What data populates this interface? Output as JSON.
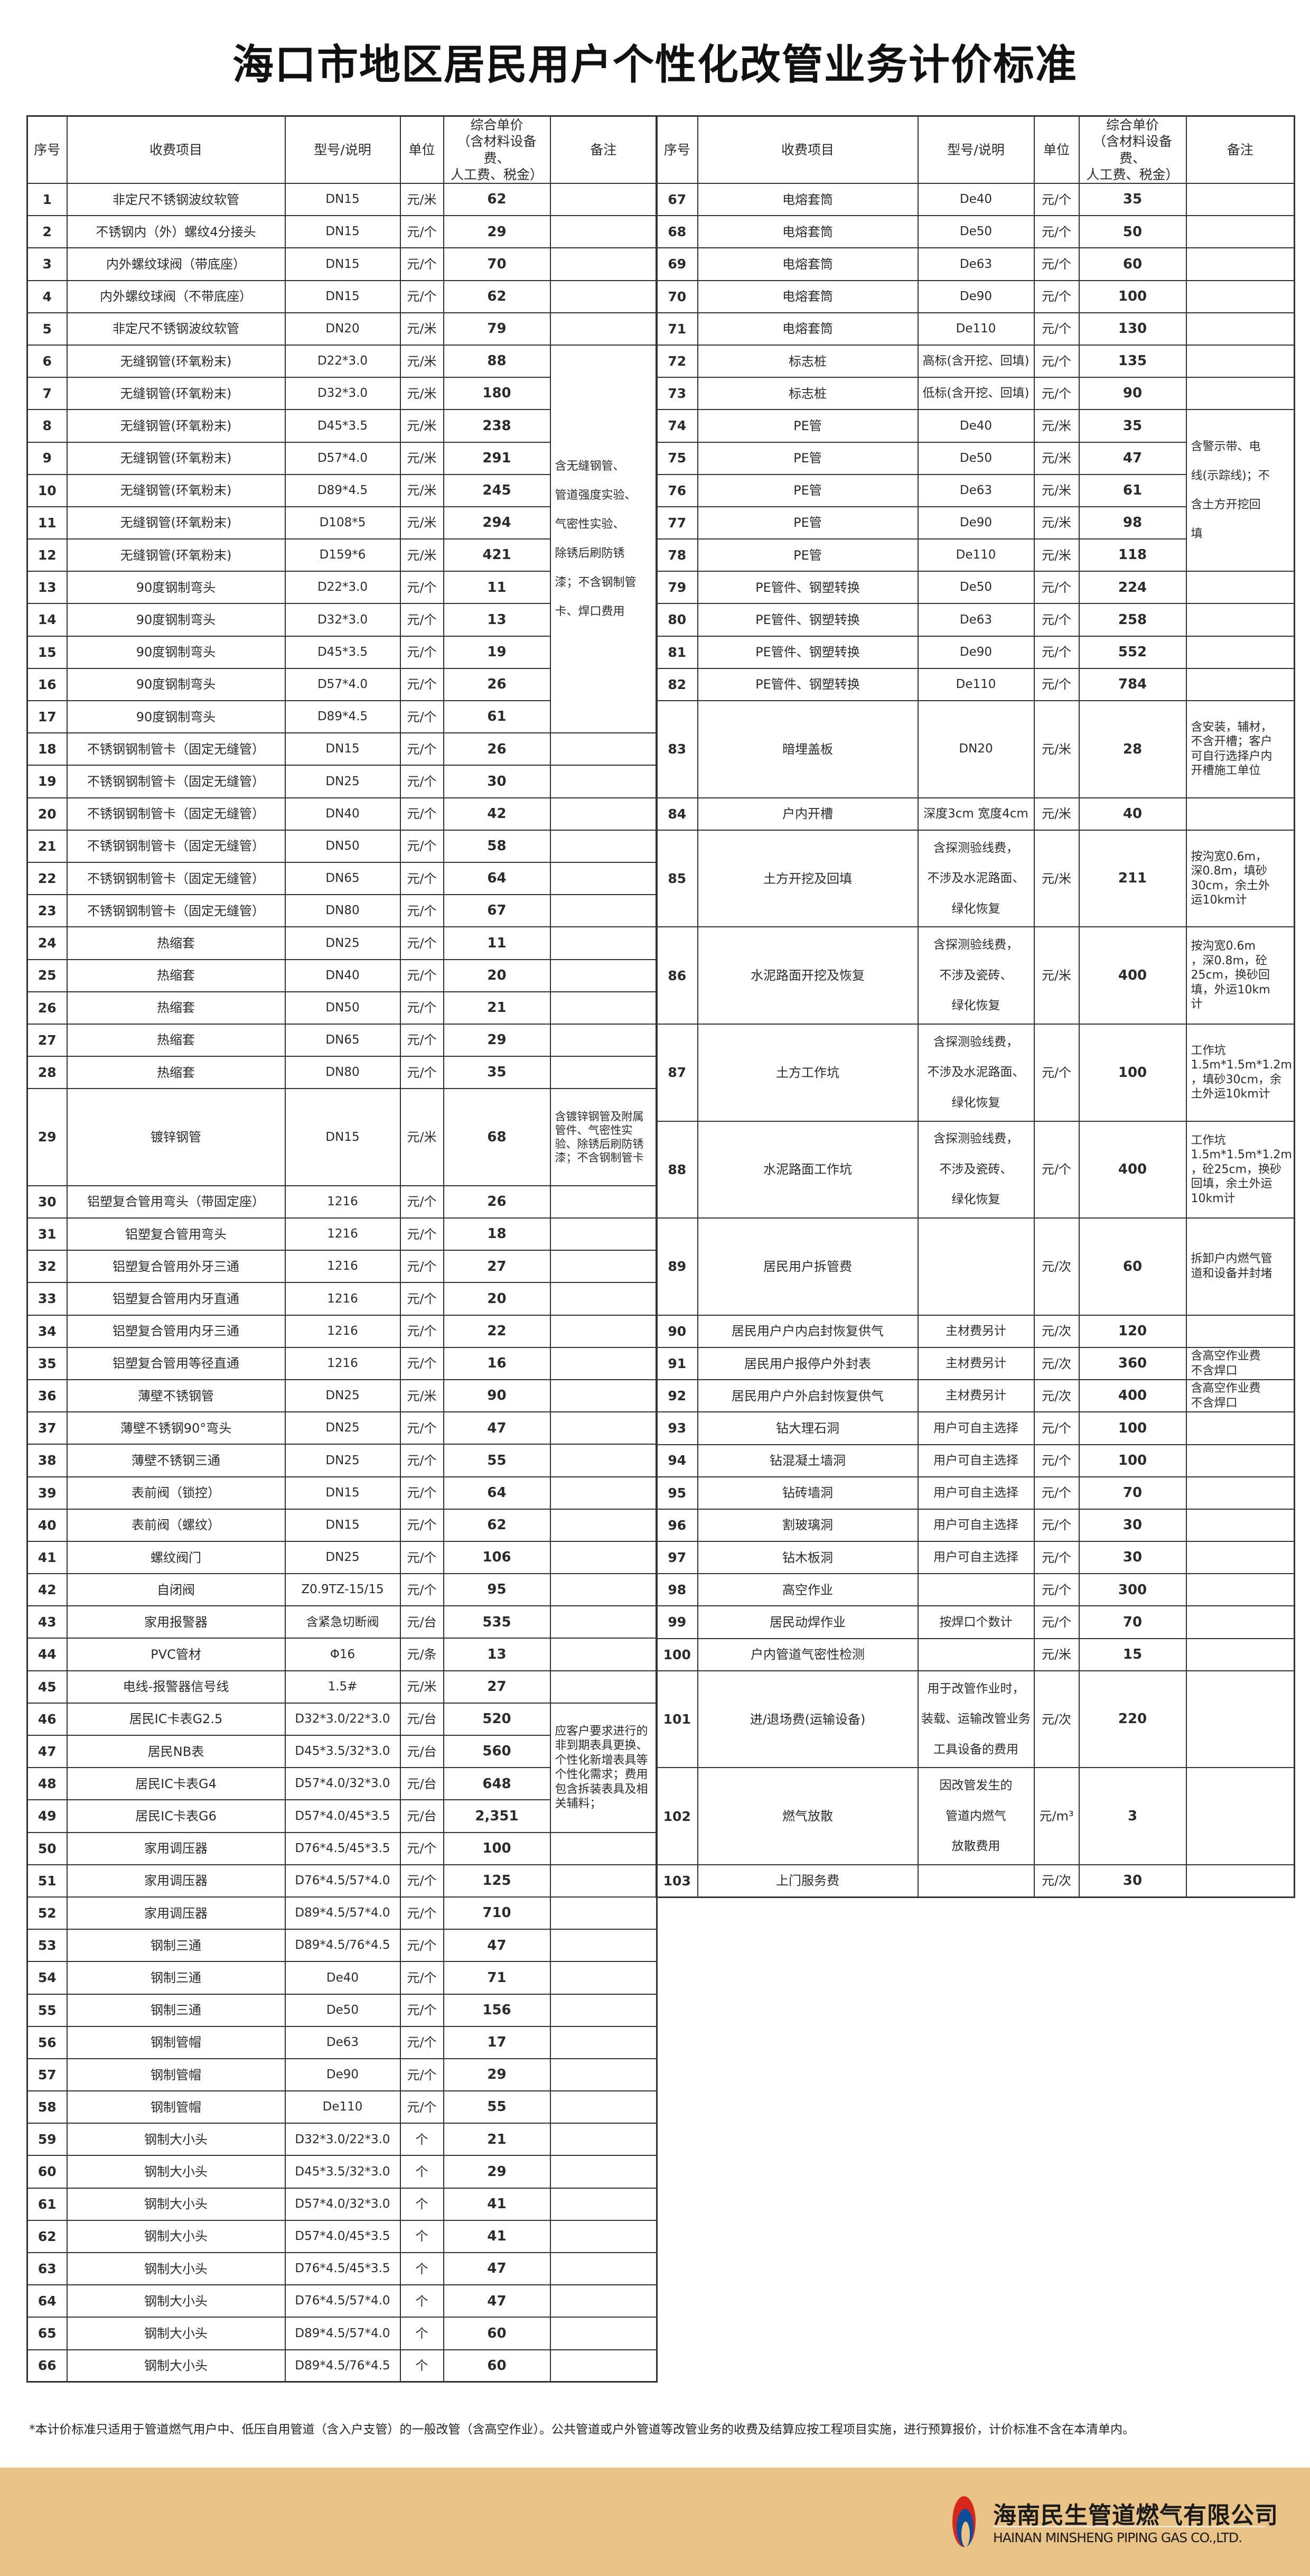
{
  "title": "海口市地区居民用户个性化改管业务计价标准",
  "headers": {
    "no": "序号",
    "item": "收费项目",
    "spec": "型号/说明",
    "unit": "单位",
    "price": "综合单价\n（含材料设备费、\n人工费、税金）",
    "remark": "备注"
  },
  "left_rows": [
    {
      "no": "1",
      "item": "非定尺不锈钢波纹软管",
      "spec": "DN15",
      "unit": "元/米",
      "price": "62",
      "remark": ""
    },
    {
      "no": "2",
      "item": "不锈钢内（外）螺纹4分接头",
      "spec": "DN15",
      "unit": "元/个",
      "price": "29",
      "remark": ""
    },
    {
      "no": "3",
      "item": "内外螺纹球阀（带底座）",
      "spec": "DN15",
      "unit": "元/个",
      "price": "70",
      "remark": ""
    },
    {
      "no": "4",
      "item": "内外螺纹球阀（不带底座）",
      "spec": "DN15",
      "unit": "元/个",
      "price": "62",
      "remark": ""
    },
    {
      "no": "5",
      "item": "非定尺不锈钢波纹软管",
      "spec": "DN20",
      "unit": "元/米",
      "price": "79",
      "remark": ""
    },
    {
      "no": "6",
      "item": "无缝钢管(环氧粉末)",
      "spec": "D22*3.0",
      "unit": "元/米",
      "price": "88",
      "remark": "含无缝钢管、\n\n管道强度实验、\n\n气密性实验、\n\n除锈后刷防锈\n\n漆；不含钢制管\n\n卡、焊口费用",
      "remark_span": 12
    },
    {
      "no": "7",
      "item": "无缝钢管(环氧粉末)",
      "spec": "D32*3.0",
      "unit": "元/米",
      "price": "180"
    },
    {
      "no": "8",
      "item": "无缝钢管(环氧粉末)",
      "spec": "D45*3.5",
      "unit": "元/米",
      "price": "238"
    },
    {
      "no": "9",
      "item": "无缝钢管(环氧粉末)",
      "spec": "D57*4.0",
      "unit": "元/米",
      "price": "291"
    },
    {
      "no": "10",
      "item": "无缝钢管(环氧粉末)",
      "spec": "D89*4.5",
      "unit": "元/米",
      "price": "245"
    },
    {
      "no": "11",
      "item": "无缝钢管(环氧粉末)",
      "spec": "D108*5",
      "unit": "元/米",
      "price": "294"
    },
    {
      "no": "12",
      "item": "无缝钢管(环氧粉末)",
      "spec": "D159*6",
      "unit": "元/米",
      "price": "421"
    },
    {
      "no": "13",
      "item": "90度钢制弯头",
      "spec": "D22*3.0",
      "unit": "元/个",
      "price": "11"
    },
    {
      "no": "14",
      "item": "90度钢制弯头",
      "spec": "D32*3.0",
      "unit": "元/个",
      "price": "13"
    },
    {
      "no": "15",
      "item": "90度钢制弯头",
      "spec": "D45*3.5",
      "unit": "元/个",
      "price": "19"
    },
    {
      "no": "16",
      "item": "90度钢制弯头",
      "spec": "D57*4.0",
      "unit": "元/个",
      "price": "26"
    },
    {
      "no": "17",
      "item": "90度钢制弯头",
      "spec": "D89*4.5",
      "unit": "元/个",
      "price": "61"
    },
    {
      "no": "18",
      "item": "不锈钢钢制管卡（固定无缝管）",
      "spec": "DN15",
      "unit": "元/个",
      "price": "26",
      "remark": ""
    },
    {
      "no": "19",
      "item": "不锈钢钢制管卡（固定无缝管）",
      "spec": "DN25",
      "unit": "元/个",
      "price": "30",
      "remark": ""
    },
    {
      "no": "20",
      "item": "不锈钢钢制管卡（固定无缝管）",
      "spec": "DN40",
      "unit": "元/个",
      "price": "42",
      "remark": ""
    },
    {
      "no": "21",
      "item": "不锈钢钢制管卡（固定无缝管）",
      "spec": "DN50",
      "unit": "元/个",
      "price": "58",
      "remark": ""
    },
    {
      "no": "22",
      "item": "不锈钢钢制管卡（固定无缝管）",
      "spec": "DN65",
      "unit": "元/个",
      "price": "64",
      "remark": ""
    },
    {
      "no": "23",
      "item": "不锈钢钢制管卡（固定无缝管）",
      "spec": "DN80",
      "unit": "元/个",
      "price": "67",
      "remark": ""
    },
    {
      "no": "24",
      "item": "热缩套",
      "spec": "DN25",
      "unit": "元/个",
      "price": "11",
      "remark": ""
    },
    {
      "no": "25",
      "item": "热缩套",
      "spec": "DN40",
      "unit": "元/个",
      "price": "20",
      "remark": ""
    },
    {
      "no": "26",
      "item": "热缩套",
      "spec": "DN50",
      "unit": "元/个",
      "price": "21",
      "remark": ""
    },
    {
      "no": "27",
      "item": "热缩套",
      "spec": "DN65",
      "unit": "元/个",
      "price": "29",
      "remark": ""
    },
    {
      "no": "28",
      "item": "热缩套",
      "spec": "DN80",
      "unit": "元/个",
      "price": "35",
      "remark": ""
    },
    {
      "no": "29",
      "item": "镀锌钢管",
      "spec": "DN15",
      "unit": "元/米",
      "price": "68",
      "remark": "含镀锌钢管及附属管件、气密性实验、除锈后刷防锈漆；不含钢制管卡"
    },
    {
      "no": "30",
      "item": "铝塑复合管用弯头（带固定座）",
      "spec": "1216",
      "unit": "元/个",
      "price": "26",
      "remark": ""
    },
    {
      "no": "31",
      "item": "铝塑复合管用弯头",
      "spec": "1216",
      "unit": "元/个",
      "price": "18",
      "remark": ""
    },
    {
      "no": "32",
      "item": "铝塑复合管用外牙三通",
      "spec": "1216",
      "unit": "元/个",
      "price": "27",
      "remark": ""
    },
    {
      "no": "33",
      "item": "铝塑复合管用内牙直通",
      "spec": "1216",
      "unit": "元/个",
      "price": "20",
      "remark": ""
    },
    {
      "no": "34",
      "item": "铝塑复合管用内牙三通",
      "spec": "1216",
      "unit": "元/个",
      "price": "22",
      "remark": ""
    },
    {
      "no": "35",
      "item": "铝塑复合管用等径直通",
      "spec": "1216",
      "unit": "元/个",
      "price": "16",
      "remark": ""
    },
    {
      "no": "36",
      "item": "薄壁不锈钢管",
      "spec": "DN25",
      "unit": "元/米",
      "price": "90",
      "remark": ""
    },
    {
      "no": "37",
      "item": "薄壁不锈钢90°弯头",
      "spec": "DN25",
      "unit": "元/个",
      "price": "47",
      "remark": ""
    },
    {
      "no": "38",
      "item": "薄壁不锈钢三通",
      "spec": "DN25",
      "unit": "元/个",
      "price": "55",
      "remark": ""
    },
    {
      "no": "39",
      "item": "表前阀（锁控）",
      "spec": "DN15",
      "unit": "元/个",
      "price": "64",
      "remark": ""
    },
    {
      "no": "40",
      "item": "表前阀（螺纹）",
      "spec": "DN15",
      "unit": "元/个",
      "price": "62",
      "remark": ""
    },
    {
      "no": "41",
      "item": "螺纹阀门",
      "spec": "DN25",
      "unit": "元/个",
      "price": "106",
      "remark": ""
    },
    {
      "no": "42",
      "item": "自闭阀",
      "spec": "Z0.9TZ-15/15",
      "unit": "元/个",
      "price": "95",
      "remark": ""
    },
    {
      "no": "43",
      "item": "家用报警器",
      "spec": "含紧急切断阀",
      "unit": "元/台",
      "price": "535",
      "remark": ""
    },
    {
      "no": "44",
      "item": "PVC管材",
      "spec": "Φ16",
      "unit": "元/条",
      "price": "13",
      "remark": ""
    },
    {
      "no": "45",
      "item": "电线-报警器信号线",
      "spec": "1.5#",
      "unit": "元/米",
      "price": "27",
      "remark": ""
    },
    {
      "no": "46",
      "item": "居民IC卡表G2.5",
      "spec": "D32*3.0/22*3.0",
      "unit": "元/台",
      "price": "520",
      "remark": "应客户要求进行的非到期表具更换、个性化新增表具等个性化需求；费用包含拆装表具及相关辅料；",
      "remark_span": 4
    },
    {
      "no": "47",
      "item": "居民NB表",
      "spec": "D45*3.5/32*3.0",
      "unit": "元/台",
      "price": "560"
    },
    {
      "no": "48",
      "item": "居民IC卡表G4",
      "spec": "D57*4.0/32*3.0",
      "unit": "元/台",
      "price": "648"
    },
    {
      "no": "49",
      "item": "居民IC卡表G6",
      "spec": "D57*4.0/45*3.5",
      "unit": "元/台",
      "price": "2,351"
    },
    {
      "no": "50",
      "item": "家用调压器",
      "spec": "D76*4.5/45*3.5",
      "unit": "元/个",
      "price": "100",
      "remark": ""
    },
    {
      "no": "51",
      "item": "家用调压器",
      "spec": "D76*4.5/57*4.0",
      "unit": "元/个",
      "price": "125",
      "remark": ""
    },
    {
      "no": "52",
      "item": "家用调压器",
      "spec": "D89*4.5/57*4.0",
      "unit": "元/个",
      "price": "710",
      "remark": ""
    },
    {
      "no": "53",
      "item": "钢制三通",
      "spec": "D89*4.5/76*4.5",
      "unit": "元/个",
      "price": "47",
      "remark": ""
    },
    {
      "no": "54",
      "item": "钢制三通",
      "spec": "De40",
      "unit": "元/个",
      "price": "71",
      "remark": ""
    },
    {
      "no": "55",
      "item": "钢制三通",
      "spec": "De50",
      "unit": "元/个",
      "price": "156",
      "remark": ""
    },
    {
      "no": "56",
      "item": "钢制管帽",
      "spec": "De63",
      "unit": "元/个",
      "price": "17",
      "remark": ""
    },
    {
      "no": "57",
      "item": "钢制管帽",
      "spec": "De90",
      "unit": "元/个",
      "price": "29",
      "remark": ""
    },
    {
      "no": "58",
      "item": "钢制管帽",
      "spec": "De110",
      "unit": "元/个",
      "price": "55",
      "remark": ""
    },
    {
      "no": "59",
      "item": "钢制大小头",
      "spec": "D32*3.0/22*3.0",
      "unit": "个",
      "price": "21",
      "remark": ""
    },
    {
      "no": "60",
      "item": "钢制大小头",
      "spec": "D45*3.5/32*3.0",
      "unit": "个",
      "price": "29",
      "remark": ""
    },
    {
      "no": "61",
      "item": "钢制大小头",
      "spec": "D57*4.0/32*3.0",
      "unit": "个",
      "price": "41",
      "remark": ""
    },
    {
      "no": "62",
      "item": "钢制大小头",
      "spec": "D57*4.0/45*3.5",
      "unit": "个",
      "price": "41",
      "remark": ""
    },
    {
      "no": "63",
      "item": "钢制大小头",
      "spec": "D76*4.5/45*3.5",
      "unit": "个",
      "price": "47",
      "remark": ""
    },
    {
      "no": "64",
      "item": "钢制大小头",
      "spec": "D76*4.5/57*4.0",
      "unit": "个",
      "price": "47",
      "remark": ""
    },
    {
      "no": "65",
      "item": "钢制大小头",
      "spec": "D89*4.5/57*4.0",
      "unit": "个",
      "price": "60",
      "remark": ""
    },
    {
      "no": "66",
      "item": "钢制大小头",
      "spec": "D89*4.5/76*4.5",
      "unit": "个",
      "price": "60",
      "remark": ""
    }
  ],
  "right_rows": [
    {
      "no": "67",
      "item": "电熔套筒",
      "spec": "De40",
      "unit": "元/个",
      "price": "35",
      "remark": ""
    },
    {
      "no": "68",
      "item": "电熔套筒",
      "spec": "De50",
      "unit": "元/个",
      "price": "50",
      "remark": ""
    },
    {
      "no": "69",
      "item": "电熔套筒",
      "spec": "De63",
      "unit": "元/个",
      "price": "60",
      "remark": ""
    },
    {
      "no": "70",
      "item": "电熔套筒",
      "spec": "De90",
      "unit": "元/个",
      "price": "100",
      "remark": ""
    },
    {
      "no": "71",
      "item": "电熔套筒",
      "spec": "De110",
      "unit": "元/个",
      "price": "130",
      "remark": ""
    },
    {
      "no": "72",
      "item": "标志桩",
      "spec": "高标(含开挖、回填)",
      "unit": "元/个",
      "price": "135",
      "remark": ""
    },
    {
      "no": "73",
      "item": "标志桩",
      "spec": "低标(含开挖、回填)",
      "unit": "元/个",
      "price": "90",
      "remark": ""
    },
    {
      "no": "74",
      "item": "PE管",
      "spec": "De40",
      "unit": "元/米",
      "price": "35",
      "remark": "含警示带、电\n\n线(示踪线)；不\n\n含土方开挖回\n\n填",
      "remark_span": 5
    },
    {
      "no": "75",
      "item": "PE管",
      "spec": "De50",
      "unit": "元/米",
      "price": "47"
    },
    {
      "no": "76",
      "item": "PE管",
      "spec": "De63",
      "unit": "元/米",
      "price": "61"
    },
    {
      "no": "77",
      "item": "PE管",
      "spec": "De90",
      "unit": "元/米",
      "price": "98"
    },
    {
      "no": "78",
      "item": "PE管",
      "spec": "De110",
      "unit": "元/米",
      "price": "118"
    },
    {
      "no": "79",
      "item": "PE管件、钢塑转换",
      "spec": "De50",
      "unit": "元/个",
      "price": "224",
      "remark": ""
    },
    {
      "no": "80",
      "item": "PE管件、钢塑转换",
      "spec": "De63",
      "unit": "元/个",
      "price": "258",
      "remark": ""
    },
    {
      "no": "81",
      "item": "PE管件、钢塑转换",
      "spec": "De90",
      "unit": "元/个",
      "price": "552",
      "remark": ""
    },
    {
      "no": "82",
      "item": "PE管件、钢塑转换",
      "spec": "De110",
      "unit": "元/个",
      "price": "784",
      "remark": ""
    },
    {
      "no": "83",
      "item": "暗埋盖板",
      "spec": "DN20",
      "unit": "元/米",
      "price": "28",
      "remark": "含安装，辅材，\n不含开槽；客户\n可自行选择户内\n开槽施工单位"
    },
    {
      "no": "84",
      "item": "户内开槽",
      "spec": "深度3cm 宽度4cm",
      "unit": "元/米",
      "price": "40",
      "remark": ""
    },
    {
      "no": "85",
      "item": "土方开挖及回填",
      "spec": "含探测验线费，\n\n不涉及水泥路面、\n\n绿化恢复",
      "unit": "元/米",
      "price": "211",
      "remark": "按沟宽0.6m，\n深0.8m，填砂\n30cm，余土外\n运10km计"
    },
    {
      "no": "86",
      "item": "水泥路面开挖及恢复",
      "spec": "含探测验线费，\n\n不涉及瓷砖、\n\n绿化恢复",
      "unit": "元/米",
      "price": "400",
      "remark": "按沟宽0.6m\n，深0.8m，砼\n25cm，换砂回\n填，外运10km\n计"
    },
    {
      "no": "87",
      "item": "土方工作坑",
      "spec": "含探测验线费，\n\n不涉及水泥路面、\n\n绿化恢复",
      "unit": "元/个",
      "price": "100",
      "remark": "工作坑\n1.5m*1.5m*1.2m\n，填砂30cm，余\n土外运10km计"
    },
    {
      "no": "88",
      "item": "水泥路面工作坑",
      "spec": "含探测验线费，\n\n不涉及瓷砖、\n\n绿化恢复",
      "unit": "元/个",
      "price": "400",
      "remark": "工作坑\n1.5m*1.5m*1.2m\n，砼25cm，换砂\n回填，余土外运\n10km计"
    },
    {
      "no": "89",
      "item": "居民用户拆管费",
      "spec": "",
      "unit": "元/次",
      "price": "60",
      "remark": "拆卸户内燃气管\n道和设备并封堵"
    },
    {
      "no": "90",
      "item": "居民用户户内启封恢复供气",
      "spec": "主材费另计",
      "unit": "元/次",
      "price": "120",
      "remark": ""
    },
    {
      "no": "91",
      "item": "居民用户报停户外封表",
      "spec": "主材费另计",
      "unit": "元/次",
      "price": "360",
      "remark": "含高空作业费\n不含焊口"
    },
    {
      "no": "92",
      "item": "居民用户户外启封恢复供气",
      "spec": "主材费另计",
      "unit": "元/次",
      "price": "400",
      "remark": "含高空作业费\n不含焊口"
    },
    {
      "no": "93",
      "item": "钻大理石洞",
      "spec": "用户可自主选择",
      "unit": "元/个",
      "price": "100",
      "remark": ""
    },
    {
      "no": "94",
      "item": "钻混凝土墙洞",
      "spec": "用户可自主选择",
      "unit": "元/个",
      "price": "100",
      "remark": ""
    },
    {
      "no": "95",
      "item": "钻砖墙洞",
      "spec": "用户可自主选择",
      "unit": "元/个",
      "price": "70",
      "remark": ""
    },
    {
      "no": "96",
      "item": "割玻璃洞",
      "spec": "用户可自主选择",
      "unit": "元/个",
      "price": "30",
      "remark": ""
    },
    {
      "no": "97",
      "item": "钻木板洞",
      "spec": "用户可自主选择",
      "unit": "元/个",
      "price": "30",
      "remark": ""
    },
    {
      "no": "98",
      "item": "高空作业",
      "spec": "",
      "unit": "元/个",
      "price": "300",
      "remark": ""
    },
    {
      "no": "99",
      "item": "居民动焊作业",
      "spec": "按焊口个数计",
      "unit": "元/个",
      "price": "70",
      "remark": ""
    },
    {
      "no": "100",
      "item": "户内管道气密性检测",
      "spec": "",
      "unit": "元/米",
      "price": "15",
      "remark": ""
    },
    {
      "no": "101",
      "item": "进/退场费(运输设备)",
      "spec": "用于改管作业时，\n\n装载、运输改管业务\n\n工具设备的费用",
      "unit": "元/次",
      "price": "220",
      "remark": ""
    },
    {
      "no": "102",
      "item": "燃气放散",
      "spec": "因改管发生的\n\n管道内燃气\n\n放散费用",
      "unit": "元/m³",
      "price": "3",
      "remark": ""
    },
    {
      "no": "103",
      "item": "上门服务费",
      "spec": "",
      "unit": "元/次",
      "price": "30",
      "remark": ""
    }
  ],
  "footnote": "*本计价标准只适用于管道燃气用户中、低压自用管道（含入户支管）的一般改管（含高空作业）。公共管道或户外管道等改管业务的收费及结算应按工程项目实施，进行预算报价，计价标准不含在本清单内。",
  "company": {
    "name_cn": "海南民生管道燃气有限公司",
    "name_en": "HAINAN MINSHENG PIPING GAS CO.,LTD.",
    "logo_colors": {
      "red": "#D7261E",
      "blue": "#0E4D9C"
    }
  },
  "colors": {
    "footer_band": "#E8C287",
    "grid": "#333333"
  }
}
